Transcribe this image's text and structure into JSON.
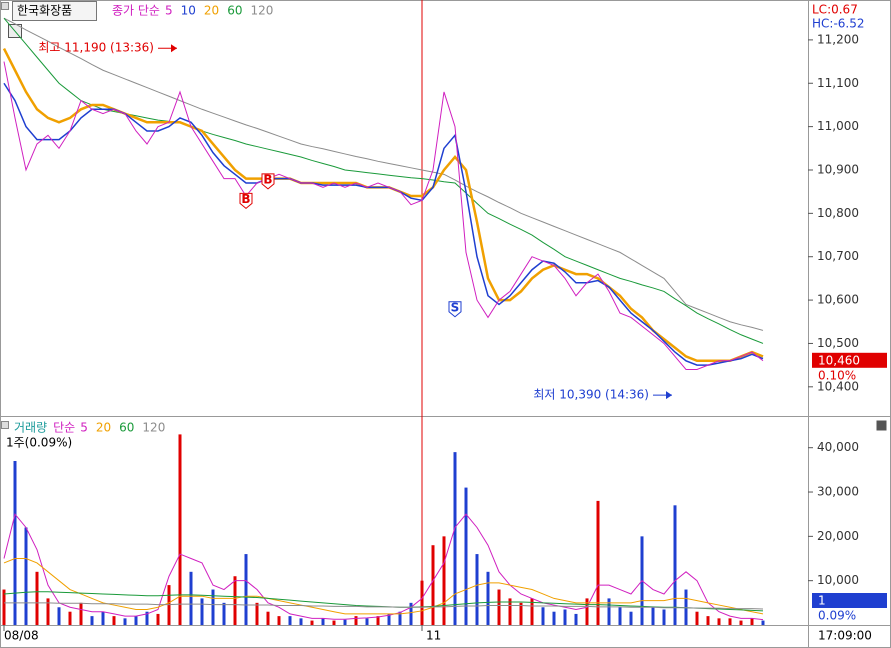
{
  "time": "17:09:00",
  "chart_data": [
    {
      "type": "line",
      "title": "한국화장품",
      "legend_title": "종가 단순",
      "corner_labels": [
        {
          "text": "LC:0.67",
          "color": "#e00000"
        },
        {
          "text": "HC:-6.52",
          "color": "#1f3fd0"
        }
      ],
      "categories": [
        "08/08",
        null,
        null,
        null,
        null,
        null,
        null,
        null,
        null,
        null,
        null,
        null,
        null,
        null,
        null,
        null,
        null,
        null,
        null,
        null,
        null,
        null,
        null,
        null,
        null,
        null,
        null,
        null,
        null,
        null,
        null,
        null,
        null,
        null,
        null,
        null,
        null,
        null,
        "11",
        null,
        null,
        null,
        null,
        null,
        null,
        null,
        null,
        null,
        null,
        null,
        null,
        null,
        null,
        null,
        null,
        null,
        null,
        null,
        null,
        null,
        null,
        null,
        null,
        null,
        null,
        null,
        null,
        null,
        null,
        null
      ],
      "series": [
        {
          "name": "120",
          "color": "#8c8c8c",
          "width": 1,
          "values": [
            11250,
            11237,
            11223,
            11210,
            11197,
            11183,
            11170,
            11157,
            11143,
            11130,
            11120,
            11110,
            11100,
            11090,
            11080,
            11070,
            11060,
            11050,
            11040,
            11031,
            11022,
            11013,
            11004,
            10996,
            10987,
            10978,
            10969,
            10960,
            10954,
            10949,
            10943,
            10937,
            10931,
            10926,
            10920,
            10915,
            10910,
            10905,
            10900,
            10895,
            10890,
            10877,
            10863,
            10850,
            10838,
            10825,
            10813,
            10800,
            10790,
            10780,
            10770,
            10760,
            10750,
            10740,
            10730,
            10720,
            10710,
            10695,
            10680,
            10665,
            10650,
            10620,
            10590,
            10580,
            10570,
            10560,
            10550,
            10543,
            10537,
            10530
          ]
        },
        {
          "name": "60",
          "color": "#1a9a3a",
          "width": 1,
          "values": [
            11250,
            11220,
            11190,
            11160,
            11130,
            11100,
            11080,
            11060,
            11050,
            11040,
            11035,
            11030,
            11025,
            11020,
            11015,
            11012,
            11010,
            11000,
            10990,
            10982,
            10975,
            10968,
            10960,
            10954,
            10948,
            10942,
            10936,
            10930,
            10922,
            10915,
            10908,
            10900,
            10897,
            10894,
            10891,
            10888,
            10885,
            10882,
            10880,
            10877,
            10873,
            10870,
            10847,
            10823,
            10800,
            10788,
            10775,
            10763,
            10750,
            10733,
            10717,
            10700,
            10690,
            10680,
            10670,
            10660,
            10650,
            10643,
            10635,
            10628,
            10620,
            10603,
            10587,
            10570,
            10557,
            10545,
            10532,
            10520,
            10510,
            10500
          ]
        },
        {
          "name": "20",
          "color": "#f0a000",
          "width": 2.5,
          "values": [
            11180,
            11130,
            11080,
            11040,
            11020,
            11010,
            11020,
            11040,
            11050,
            11050,
            11040,
            11030,
            11020,
            11010,
            11010,
            11010,
            11010,
            11000,
            10990,
            10960,
            10930,
            10900,
            10880,
            10880,
            10880,
            10880,
            10880,
            10870,
            10870,
            10870,
            10870,
            10870,
            10870,
            10860,
            10860,
            10860,
            10850,
            10840,
            10840,
            10860,
            10900,
            10930,
            10900,
            10780,
            10650,
            10600,
            10600,
            10620,
            10650,
            10670,
            10680,
            10670,
            10660,
            10660,
            10650,
            10630,
            10610,
            10580,
            10560,
            10530,
            10510,
            10490,
            10470,
            10460,
            10460,
            10460,
            10460,
            10470,
            10480,
            10470
          ]
        },
        {
          "name": "10",
          "color": "#1f3fd0",
          "width": 1.5,
          "values": [
            11100,
            11060,
            11000,
            10970,
            10970,
            10970,
            10990,
            11020,
            11040,
            11040,
            11040,
            11030,
            11010,
            10990,
            10990,
            11000,
            11020,
            11010,
            10980,
            10940,
            10910,
            10890,
            10870,
            10870,
            10880,
            10880,
            10880,
            10870,
            10870,
            10865,
            10865,
            10865,
            10865,
            10860,
            10860,
            10860,
            10850,
            10835,
            10830,
            10860,
            10950,
            10980,
            10850,
            10700,
            10610,
            10590,
            10610,
            10640,
            10670,
            10690,
            10685,
            10665,
            10640,
            10640,
            10645,
            10630,
            10600,
            10570,
            10550,
            10530,
            10505,
            10480,
            10460,
            10450,
            10450,
            10455,
            10460,
            10465,
            10475,
            10465
          ]
        },
        {
          "name": "5",
          "color": "#d020c0",
          "width": 1,
          "values": [
            11150,
            11020,
            10900,
            10960,
            10980,
            10950,
            10990,
            11060,
            11040,
            11030,
            11040,
            11030,
            10990,
            10960,
            11000,
            11010,
            11080,
            11000,
            10960,
            10920,
            10880,
            10880,
            10840,
            10870,
            10880,
            10890,
            10880,
            10870,
            10870,
            10860,
            10870,
            10860,
            10870,
            10860,
            10870,
            10860,
            10850,
            10820,
            10830,
            10900,
            11080,
            11000,
            10710,
            10600,
            10560,
            10600,
            10620,
            10660,
            10700,
            10690,
            10680,
            10650,
            10610,
            10640,
            10660,
            10620,
            10570,
            10560,
            10540,
            10520,
            10500,
            10470,
            10440,
            10440,
            10450,
            10460,
            10460,
            10470,
            10480,
            10460
          ]
        }
      ],
      "annotations": [
        {
          "text": "최고 11,190 (13:36)",
          "value": 11190,
          "category": 16,
          "color": "#e00000"
        },
        {
          "text": "최저 10,390 (14:36)",
          "value": 10390,
          "category": 61,
          "color": "#1f3fd0"
        }
      ],
      "signals": [
        {
          "label": "B",
          "value": 10830,
          "category": 22,
          "color": "#e00000"
        },
        {
          "label": "B",
          "value": 10875,
          "category": 24,
          "color": "#e00000"
        },
        {
          "label": "S",
          "value": 10580,
          "category": 41,
          "color": "#1f3fd0"
        }
      ],
      "last": {
        "value": 10460,
        "label": "10,460",
        "change": "0.10%",
        "color": "#e00000"
      },
      "ylim": [
        10335,
        11292
      ],
      "yticks": [
        {
          "value": 10400,
          "label": "10,400"
        },
        {
          "value": 10500,
          "label": "10,500"
        },
        {
          "value": 10600,
          "label": "10,600"
        },
        {
          "value": 10700,
          "label": "10,700"
        },
        {
          "value": 10800,
          "label": "10,800"
        },
        {
          "value": 10900,
          "label": "10,900"
        },
        {
          "value": 11000,
          "label": "11,000"
        },
        {
          "value": 11100,
          "label": "11,100"
        },
        {
          "value": 11200,
          "label": "11,200"
        }
      ]
    },
    {
      "type": "bar",
      "subtitle": "1주(0.09%)",
      "legend_title": "단순",
      "up_color": "#e00000",
      "down_color": "#1f3fd0",
      "series": [
        {
          "name": "거래량",
          "color": "#1a9a9a",
          "values": [
            8000,
            37000,
            22000,
            12000,
            6000,
            4000,
            3000,
            5000,
            2000,
            3000,
            2000,
            1500,
            2000,
            3000,
            2500,
            9000,
            43000,
            12000,
            6000,
            8000,
            5000,
            11000,
            16000,
            5000,
            3000,
            2000,
            2000,
            1500,
            1000,
            1500,
            1000,
            1200,
            2000,
            1500,
            2000,
            2500,
            3000,
            5000,
            10000,
            18000,
            20000,
            39000,
            31000,
            16000,
            12000,
            8000,
            6000,
            5000,
            6000,
            4000,
            3000,
            3500,
            2500,
            6000,
            28000,
            6000,
            4000,
            3000,
            20000,
            4000,
            3500,
            27000,
            8000,
            3000,
            2000,
            1500,
            1500,
            1000,
            1500,
            1000
          ]
        },
        {
          "name": "5",
          "color": "#d020c0",
          "values": [
            15000,
            25000,
            22000,
            17000,
            9000,
            5000,
            4000,
            3500,
            3000,
            3000,
            2500,
            2000,
            2000,
            2500,
            3500,
            11000,
            16000,
            15000,
            14000,
            9000,
            8000,
            10000,
            10000,
            8000,
            5000,
            4000,
            2500,
            2000,
            1500,
            1500,
            1300,
            1300,
            1500,
            1600,
            1800,
            2200,
            2800,
            4000,
            6000,
            10000,
            14000,
            22000,
            25000,
            22000,
            18000,
            12000,
            9000,
            7000,
            6000,
            5000,
            4500,
            4000,
            3500,
            4000,
            9000,
            9000,
            8000,
            7000,
            10000,
            8000,
            7000,
            10000,
            12000,
            10000,
            5000,
            3000,
            2000,
            1500,
            1500,
            1200
          ]
        },
        {
          "name": "20",
          "color": "#f0a000",
          "values": [
            14000,
            15000,
            15000,
            14000,
            12000,
            10000,
            8000,
            7000,
            6000,
            5000,
            4500,
            4000,
            3500,
            3500,
            4000,
            5000,
            6500,
            6500,
            6500,
            6000,
            6000,
            6000,
            6500,
            6500,
            6000,
            5500,
            5000,
            4500,
            4000,
            3500,
            3000,
            2500,
            2500,
            2500,
            2500,
            2500,
            2500,
            2800,
            3200,
            4000,
            5000,
            7000,
            8000,
            9000,
            9500,
            9500,
            9000,
            8500,
            8000,
            7000,
            6000,
            5500,
            5000,
            5000,
            5000,
            5000,
            5000,
            5000,
            5500,
            5500,
            5500,
            6000,
            6000,
            5500,
            5000,
            4500,
            4000,
            3500,
            3000,
            2500
          ]
        },
        {
          "name": "60",
          "color": "#1a9a3a",
          "values": [
            7000,
            7200,
            7400,
            7500,
            7500,
            7400,
            7300,
            7200,
            7100,
            7000,
            6900,
            6800,
            6700,
            6600,
            6600,
            6700,
            6800,
            6800,
            6700,
            6600,
            6500,
            6400,
            6300,
            6200,
            6000,
            5800,
            5600,
            5400,
            5200,
            5000,
            4800,
            4600,
            4400,
            4300,
            4200,
            4100,
            4000,
            4000,
            4100,
            4200,
            4400,
            4600,
            4800,
            5000,
            5100,
            5200,
            5200,
            5200,
            5100,
            5000,
            4900,
            4800,
            4700,
            4600,
            4600,
            4500,
            4400,
            4300,
            4200,
            4100,
            4000,
            4000,
            3900,
            3800,
            3700,
            3600,
            3500,
            3400,
            3300,
            3200
          ]
        },
        {
          "name": "120",
          "color": "#8c8c8c",
          "values": [
            5000,
            5000,
            5000,
            5000,
            5000,
            4900,
            4900,
            4900,
            4800,
            4800,
            4800,
            4700,
            4700,
            4700,
            4600,
            4600,
            4700,
            4700,
            4700,
            4600,
            4600,
            4600,
            4500,
            4500,
            4500,
            4400,
            4400,
            4400,
            4300,
            4300,
            4200,
            4200,
            4200,
            4100,
            4100,
            4100,
            4000,
            4000,
            4000,
            4100,
            4100,
            4200,
            4300,
            4300,
            4400,
            4400,
            4400,
            4400,
            4300,
            4300,
            4300,
            4200,
            4200,
            4200,
            4100,
            4100,
            4100,
            4000,
            4000,
            4000,
            3900,
            3900,
            3900,
            3800,
            3800,
            3800,
            3700,
            3700,
            3700,
            3600
          ]
        }
      ],
      "last": {
        "value": 1,
        "label": "1",
        "change": "0.09%",
        "color": "#1f3fd0"
      },
      "ylim": [
        0,
        46700
      ],
      "yticks": [
        {
          "value": 10000,
          "label": "10,000"
        },
        {
          "value": 20000,
          "label": "20,000"
        },
        {
          "value": 30000,
          "label": "30,000"
        },
        {
          "value": 40000,
          "label": "40,000"
        }
      ]
    }
  ]
}
